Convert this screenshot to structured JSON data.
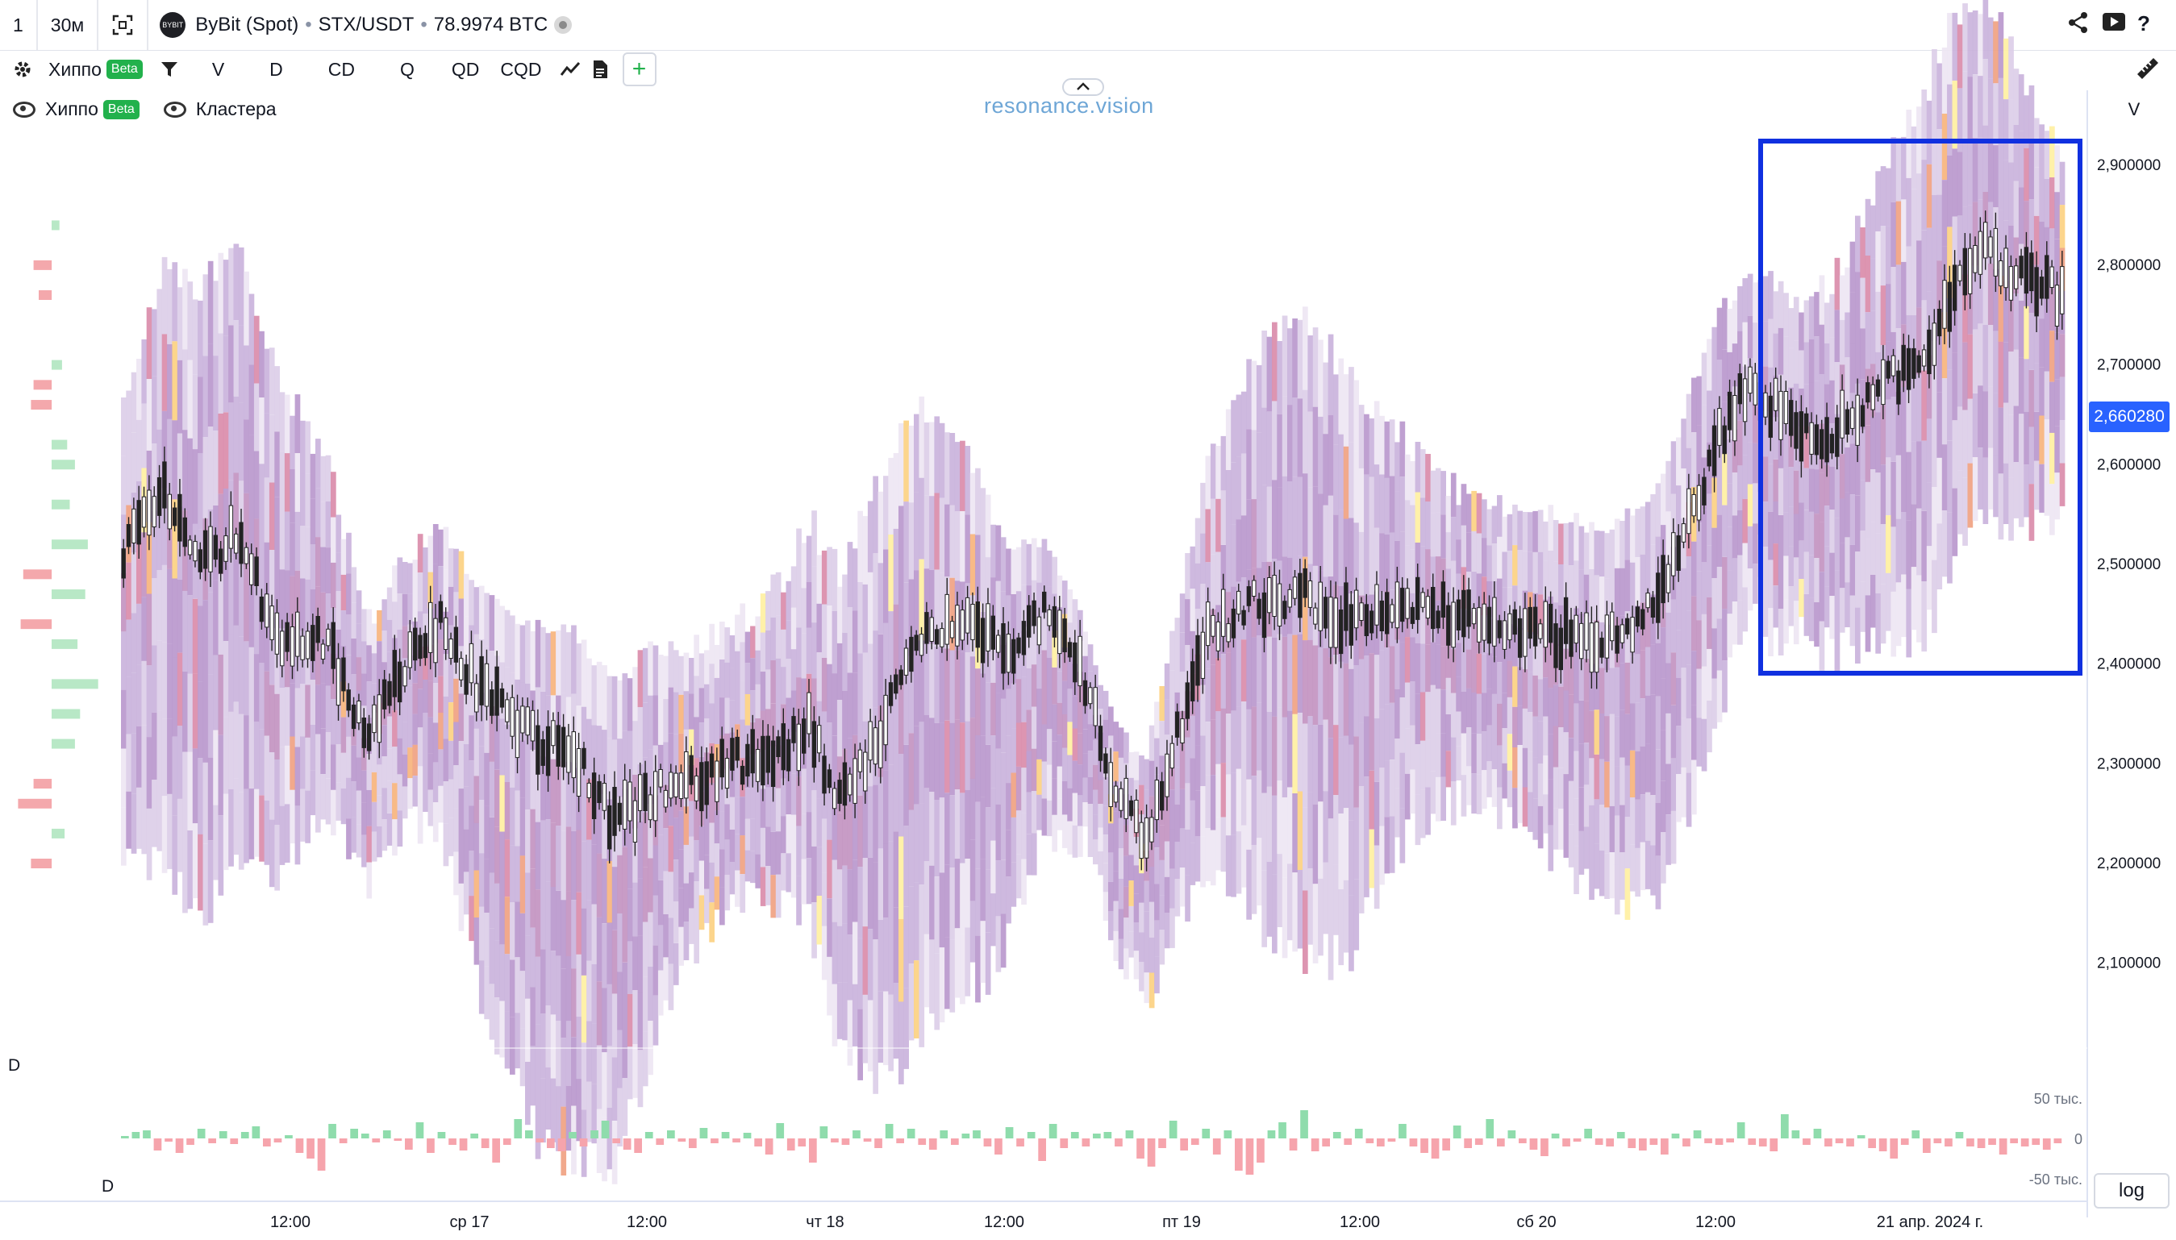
{
  "toolbar_top": {
    "bar_count": "1",
    "timeframe": "30м",
    "exchange": "ByBit (Spot)",
    "pair": "STX/USDT",
    "volume": "78.9974 BTC",
    "icons": [
      "fullscreen-icon",
      "share-icon",
      "play-icon",
      "help-icon"
    ]
  },
  "toolbar_second": {
    "indicator_label": "Хиппо",
    "beta_label": "Beta",
    "buttons": [
      "V",
      "D",
      "CD",
      "Q",
      "QD",
      "CQD"
    ],
    "add_label": "+"
  },
  "legend": {
    "hippo": "Хиппо",
    "hippo_badge": "Beta",
    "clusters": "Кластера"
  },
  "watermark": "resonance.vision",
  "chart_data": {
    "type": "heatmap",
    "axis_v_label": "V",
    "yticks": [
      2.9,
      2.8,
      2.7,
      2.6,
      2.5,
      2.4,
      2.3,
      2.2,
      2.1
    ],
    "yticks_label": [
      "2,900000",
      "2,800000",
      "2,700000",
      "2,600000",
      "2,500000",
      "2,400000",
      "2,300000",
      "2,200000",
      "2,100000"
    ],
    "ylim": [
      2.01,
      2.96
    ],
    "current_price": 2.66028,
    "current_price_label": "2,660280",
    "xticks": [
      "12:00",
      "ср 17",
      "12:00",
      "чт 18",
      "12:00",
      "пт 19",
      "12:00",
      "сб 20",
      "12:00",
      "21 апр. 2024 г."
    ],
    "price_path": [
      [
        0,
        2.51
      ],
      [
        8,
        2.57
      ],
      [
        15,
        2.5
      ],
      [
        22,
        2.53
      ],
      [
        30,
        2.43
      ],
      [
        40,
        2.42
      ],
      [
        48,
        2.32
      ],
      [
        55,
        2.4
      ],
      [
        62,
        2.44
      ],
      [
        70,
        2.37
      ],
      [
        80,
        2.33
      ],
      [
        88,
        2.31
      ],
      [
        96,
        2.24
      ],
      [
        104,
        2.27
      ],
      [
        112,
        2.28
      ],
      [
        120,
        2.3
      ],
      [
        128,
        2.31
      ],
      [
        134,
        2.34
      ],
      [
        140,
        2.26
      ],
      [
        148,
        2.33
      ],
      [
        156,
        2.43
      ],
      [
        165,
        2.45
      ],
      [
        172,
        2.41
      ],
      [
        180,
        2.45
      ],
      [
        188,
        2.38
      ],
      [
        194,
        2.27
      ],
      [
        200,
        2.22
      ],
      [
        206,
        2.33
      ],
      [
        212,
        2.43
      ],
      [
        220,
        2.46
      ],
      [
        230,
        2.47
      ],
      [
        240,
        2.44
      ],
      [
        250,
        2.46
      ],
      [
        260,
        2.45
      ],
      [
        270,
        2.44
      ],
      [
        280,
        2.43
      ],
      [
        290,
        2.42
      ],
      [
        300,
        2.46
      ],
      [
        312,
        2.63
      ],
      [
        318,
        2.68
      ],
      [
        326,
        2.64
      ],
      [
        334,
        2.63
      ],
      [
        344,
        2.68
      ],
      [
        352,
        2.7
      ],
      [
        358,
        2.78
      ],
      [
        364,
        2.81
      ],
      [
        372,
        2.78
      ],
      [
        380,
        2.77
      ]
    ],
    "heat_columns": 380,
    "profile_left": [
      {
        "y": 2.84,
        "v": 6,
        "side": "green"
      },
      {
        "y": 2.8,
        "v": 14,
        "side": "red"
      },
      {
        "y": 2.77,
        "v": 10,
        "side": "red"
      },
      {
        "y": 2.7,
        "v": 8,
        "side": "green"
      },
      {
        "y": 2.68,
        "v": 14,
        "side": "red"
      },
      {
        "y": 2.66,
        "v": 16,
        "side": "red"
      },
      {
        "y": 2.62,
        "v": 12,
        "side": "green"
      },
      {
        "y": 2.6,
        "v": 18,
        "side": "green"
      },
      {
        "y": 2.56,
        "v": 14,
        "side": "green"
      },
      {
        "y": 2.52,
        "v": 28,
        "side": "green"
      },
      {
        "y": 2.49,
        "v": 22,
        "side": "red"
      },
      {
        "y": 2.47,
        "v": 26,
        "side": "green"
      },
      {
        "y": 2.44,
        "v": 24,
        "side": "red"
      },
      {
        "y": 2.42,
        "v": 20,
        "side": "green"
      },
      {
        "y": 2.38,
        "v": 36,
        "side": "green"
      },
      {
        "y": 2.35,
        "v": 22,
        "side": "green"
      },
      {
        "y": 2.32,
        "v": 18,
        "side": "green"
      },
      {
        "y": 2.28,
        "v": 14,
        "side": "red"
      },
      {
        "y": 2.26,
        "v": 26,
        "side": "red"
      },
      {
        "y": 2.23,
        "v": 10,
        "side": "green"
      },
      {
        "y": 2.2,
        "v": 16,
        "side": "red"
      }
    ],
    "delta_panel": {
      "label": "D",
      "label2": "D",
      "yticks_label": [
        "50 тыс.",
        "0",
        "-50 тыс."
      ],
      "ylim": [
        -60000,
        80000
      ],
      "values": [
        3000,
        8000,
        10000,
        -15000,
        -4000,
        -18000,
        -8000,
        12000,
        -6000,
        9000,
        -7000,
        8000,
        15000,
        -10000,
        -5000,
        4000,
        -18000,
        -25000,
        -40000,
        18000,
        -6000,
        12000,
        6000,
        -5000,
        10000,
        -3000,
        -14000,
        20000,
        -18000,
        8000,
        -8000,
        -15000,
        6000,
        -12000,
        -30000,
        -8000,
        24000,
        10000,
        -5000,
        -12000,
        -16000,
        8000,
        -10000,
        10000,
        22000,
        -6000,
        -14000,
        -18000,
        8000,
        -8000,
        10000,
        -4000,
        -12000,
        13000,
        -6000,
        8000,
        -5000,
        7000,
        -10000,
        -20000,
        19000,
        -15000,
        -10000,
        -30000,
        15000,
        -5000,
        -8000,
        10000,
        -4000,
        -12000,
        18000,
        -6000,
        12000,
        -8000,
        -14000,
        10000,
        -8000,
        6000,
        10000,
        -10000,
        -20000,
        14000,
        -10000,
        8000,
        -28000,
        18000,
        -12000,
        8000,
        -10000,
        6000,
        8000,
        -10000,
        10000,
        -25000,
        -35000,
        -12000,
        22000,
        -15000,
        -8000,
        12000,
        -20000,
        10000,
        -40000,
        -45000,
        -30000,
        10000,
        20000,
        -15000,
        35000,
        -16000,
        -10000,
        8000,
        -8000,
        12000,
        -6000,
        -10000,
        -4000,
        18000,
        -10000,
        -18000,
        -25000,
        -15000,
        16000,
        -12000,
        -8000,
        24000,
        -10000,
        10000,
        -6000,
        -14000,
        -22000,
        6000,
        -10000,
        -4000,
        12000,
        -8000,
        -10000,
        8000,
        -12000,
        -15000,
        -8000,
        -20000,
        6000,
        -10000,
        10000,
        -6000,
        -8000,
        -5000,
        20000,
        -8000,
        -10000,
        -16000,
        30000,
        10000,
        -8000,
        12000,
        -10000,
        -6000,
        -10000,
        4000,
        -12000,
        -16000,
        -25000,
        -8000,
        10000,
        -18000,
        -6000,
        -10000,
        8000,
        -10000,
        -12000,
        -8000,
        -20000,
        -6000,
        -10000,
        -8000,
        -14000,
        -6000
      ]
    }
  },
  "highlight_box": true
}
